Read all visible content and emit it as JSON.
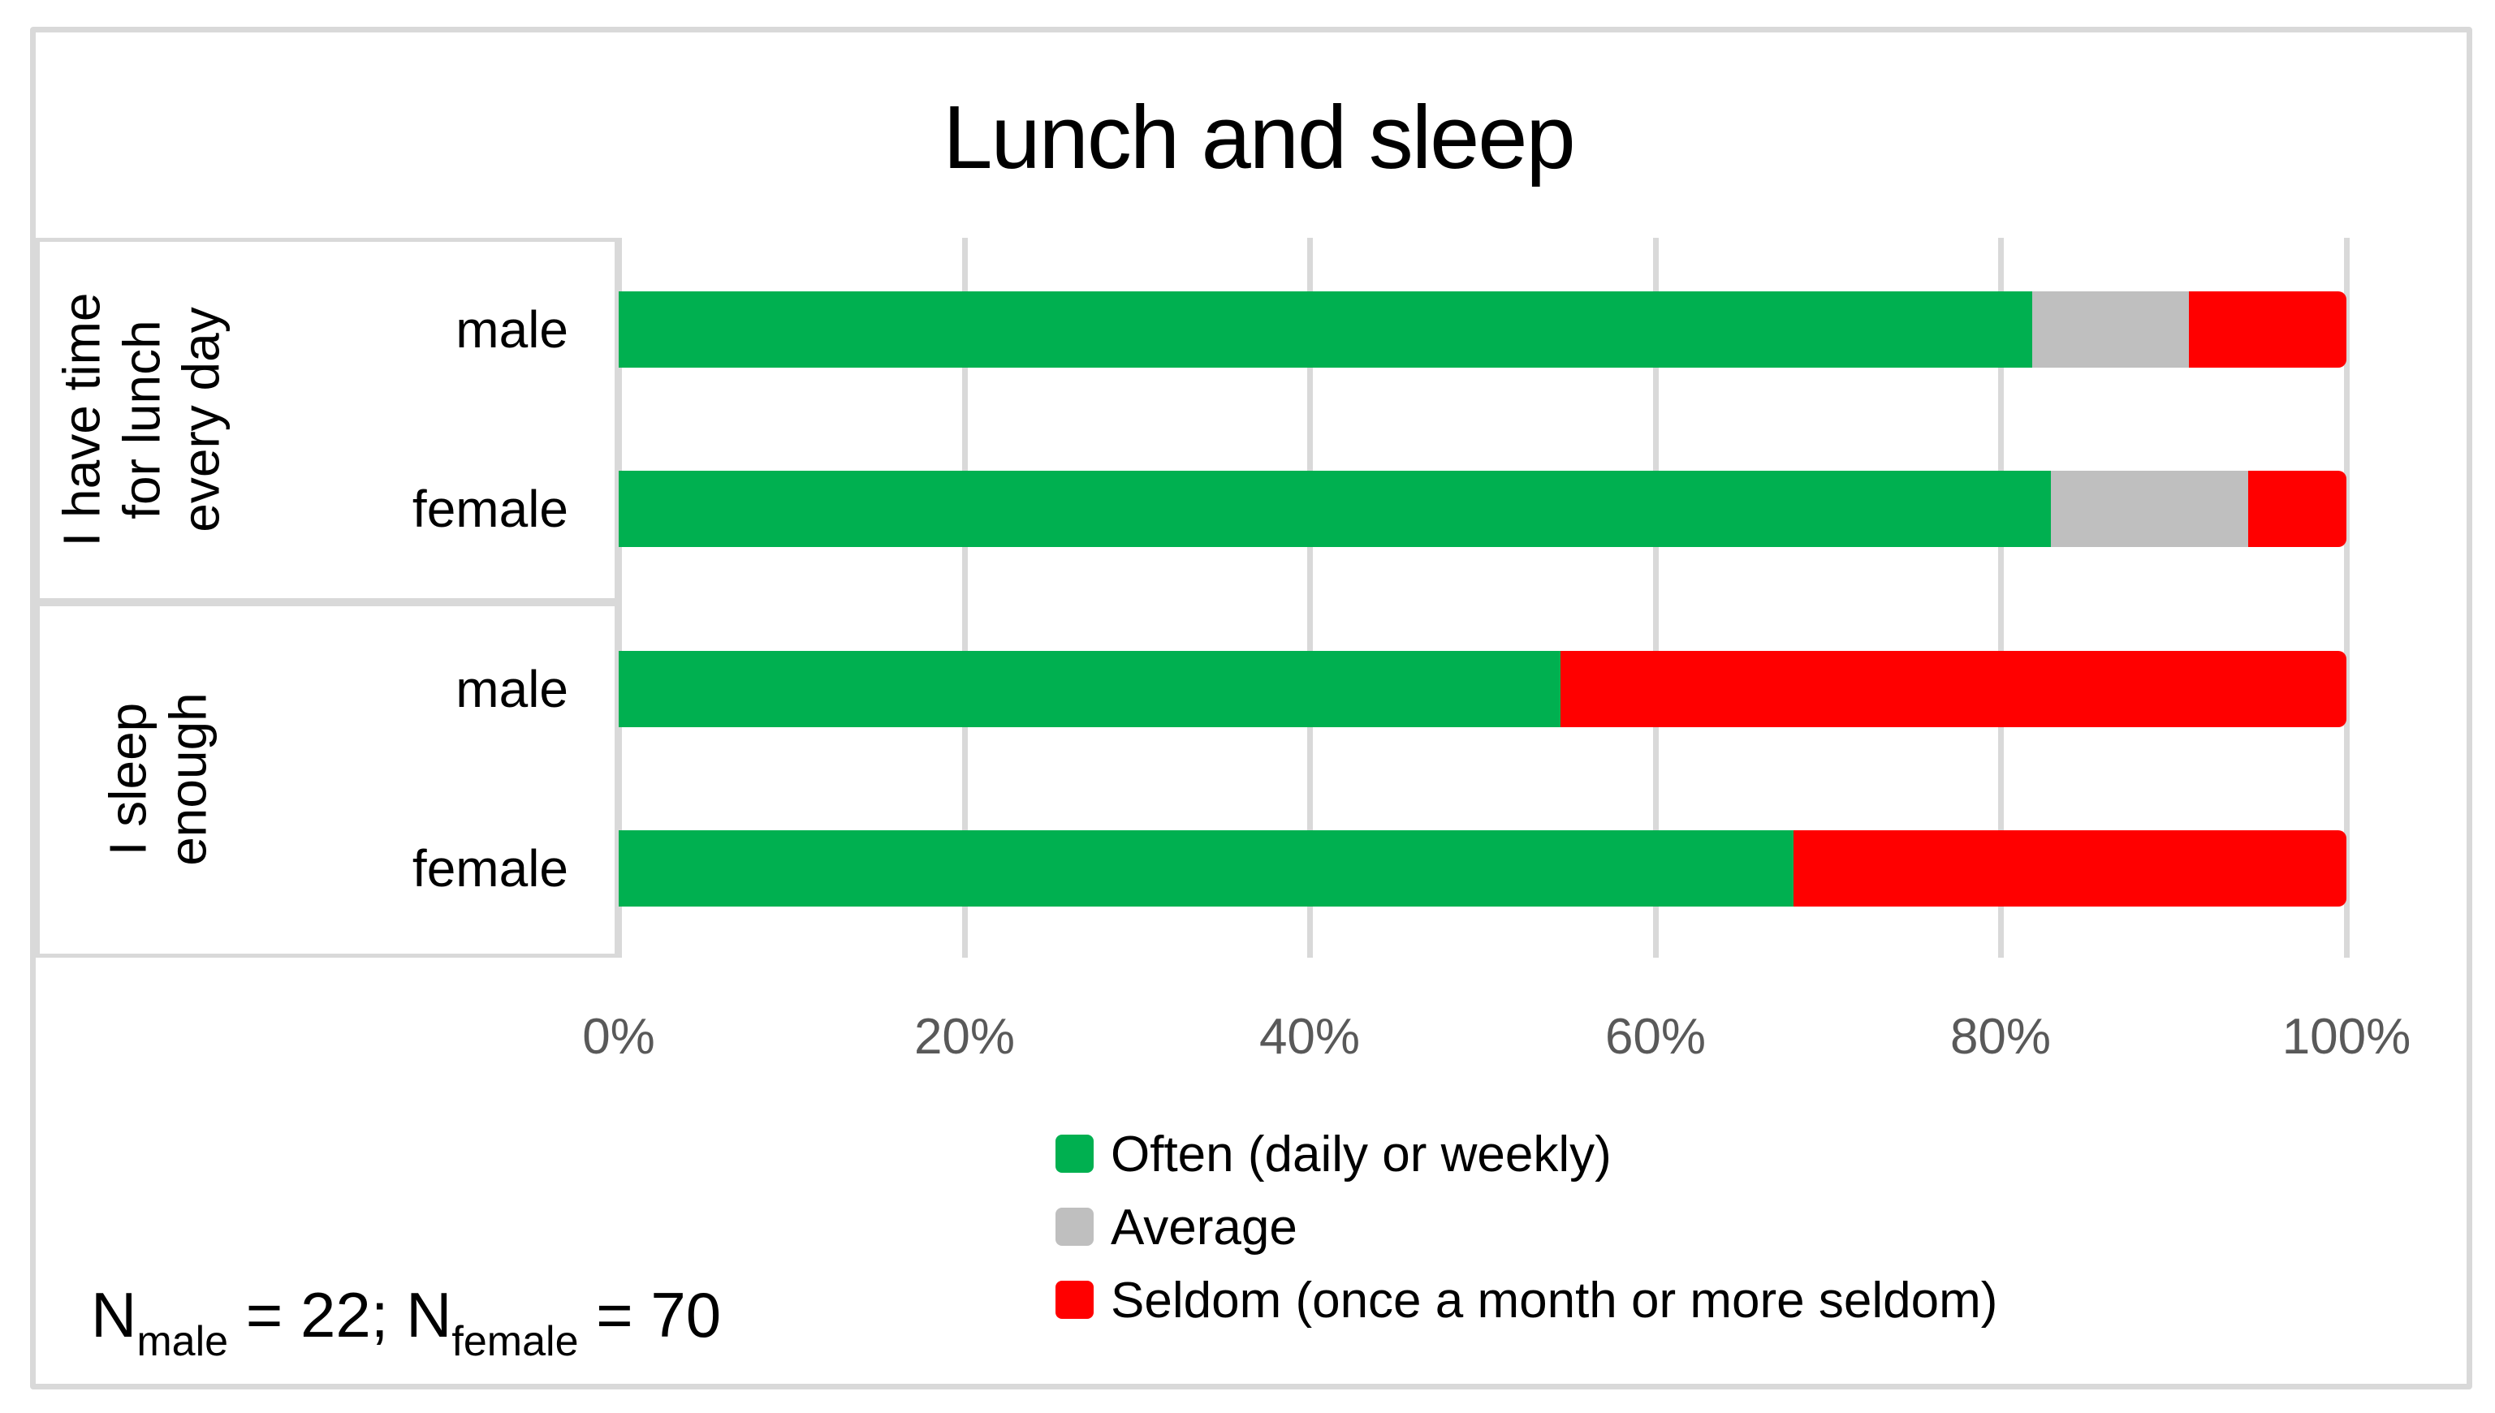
{
  "chart_data": {
    "type": "bar",
    "variant": "horizontal-stacked-100pct",
    "title": "Lunch and sleep",
    "groups": [
      {
        "label": "I have time for lunch every day",
        "label_lines": [
          "I have time",
          "for lunch",
          "every day"
        ],
        "rows": [
          {
            "label": "male",
            "values": {
              "often": 81.8,
              "average": 9.1,
              "seldom": 9.1
            }
          },
          {
            "label": "female",
            "values": {
              "often": 82.9,
              "average": 11.4,
              "seldom": 5.7
            }
          }
        ]
      },
      {
        "label": "I sleep enough",
        "label_lines": [
          "I sleep",
          "enough"
        ],
        "rows": [
          {
            "label": "male",
            "values": {
              "often": 54.5,
              "average": 0,
              "seldom": 45.5
            }
          },
          {
            "label": "female",
            "values": {
              "often": 68.0,
              "average": 0,
              "seldom": 32.0
            }
          }
        ]
      }
    ],
    "x_axis": {
      "range": [
        0,
        100
      ],
      "unit": "%",
      "grid": true,
      "ticks": [
        "0%",
        "20%",
        "40%",
        "60%",
        "80%",
        "100%"
      ]
    },
    "legend": [
      {
        "key": "often",
        "label": "Often (daily or weekly)",
        "color": "#00B050"
      },
      {
        "key": "average",
        "label": "Average",
        "color": "#BFBFBF"
      },
      {
        "key": "seldom",
        "label": "Seldom (once a month or more seldom)",
        "color": "#FF0000"
      }
    ],
    "note": {
      "n1_base": "N",
      "n1_sub": "male",
      "n1_rest": " = 22; ",
      "n2_base": "N",
      "n2_sub": "female",
      "n2_rest": " = 70"
    },
    "colors": {
      "often": "#00B050",
      "average": "#BFBFBF",
      "seldom": "#FF0000",
      "grid": "#D9D9D9",
      "axis_text": "#595959",
      "border": "#D9D9D9"
    }
  }
}
